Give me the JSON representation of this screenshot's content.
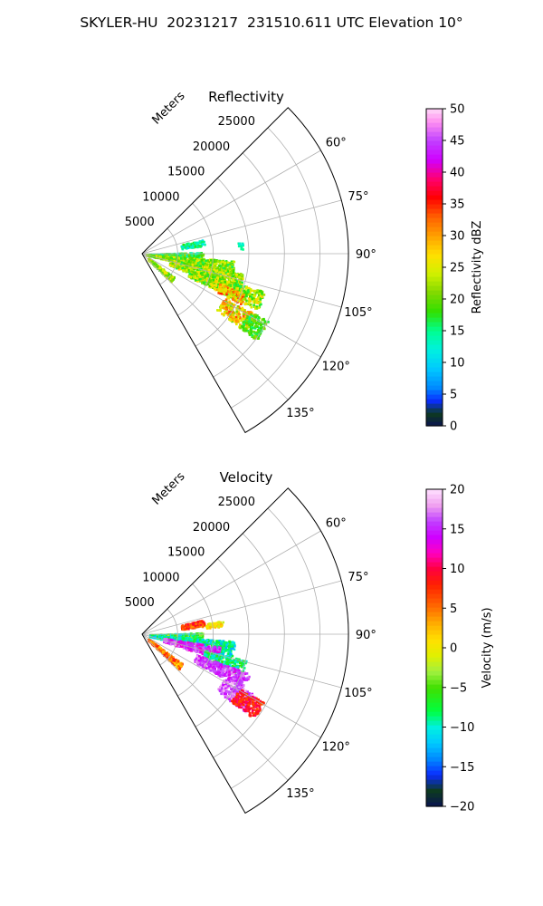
{
  "figure": {
    "suptitle": "SKYLER-HU  20231217  231510.611 UTC Elevation 10°"
  },
  "colors": {
    "grid": "#b0b0b0",
    "axis": "#000000",
    "background": "#ffffff"
  },
  "chart_data": [
    {
      "type": "polar-scatter",
      "title": "Reflectivity",
      "radial_axis_label": "Meters",
      "r_range": [
        0,
        29000
      ],
      "r_ticks": [
        5000,
        10000,
        15000,
        20000,
        25000
      ],
      "r_tick_labels": [
        "5000",
        "10000",
        "15000",
        "20000",
        "25000"
      ],
      "theta_range_deg": [
        45,
        150
      ],
      "theta_ticks_deg": [
        60,
        75,
        90,
        105,
        120,
        135
      ],
      "theta_tick_labels": [
        "60°",
        "75°",
        "90°",
        "105°",
        "120°",
        "135°"
      ],
      "grid": true,
      "colorbar": {
        "label": "Reflectivity dBZ",
        "range": [
          0,
          50
        ],
        "ticks": [
          0,
          5,
          10,
          15,
          20,
          25,
          30,
          35,
          40,
          45,
          50
        ],
        "tick_labels": [
          "0",
          "5",
          "10",
          "15",
          "20",
          "25",
          "30",
          "35",
          "40",
          "45",
          "50"
        ],
        "stops": [
          [
            0,
            "#0a1450"
          ],
          [
            2,
            "#0d3a20"
          ],
          [
            4,
            "#0a2cff"
          ],
          [
            6,
            "#0088ff"
          ],
          [
            9,
            "#00c8ff"
          ],
          [
            12,
            "#00f0e0"
          ],
          [
            15,
            "#00ff90"
          ],
          [
            18,
            "#30e000"
          ],
          [
            21,
            "#80d800"
          ],
          [
            24,
            "#d0f000"
          ],
          [
            27,
            "#ffe000"
          ],
          [
            30,
            "#ffa000"
          ],
          [
            33,
            "#ff6000"
          ],
          [
            36,
            "#ff0000"
          ],
          [
            39,
            "#ff0070"
          ],
          [
            42,
            "#d000ff"
          ],
          [
            45,
            "#c040ff"
          ],
          [
            48,
            "#ff90f0"
          ],
          [
            50,
            "#ffd8f8"
          ]
        ]
      },
      "regions": [
        {
          "th": [
            76,
            82
          ],
          "r": [
            5500,
            8800
          ],
          "v": [
            10,
            18
          ]
        },
        {
          "th": [
            83,
            87
          ],
          "r": [
            13500,
            14200
          ],
          "v": [
            12,
            16
          ]
        },
        {
          "th": [
            88,
            94
          ],
          "r": [
            1000,
            8500
          ],
          "v": [
            12,
            22
          ]
        },
        {
          "th": [
            94,
            103
          ],
          "r": [
            500,
            13000
          ],
          "v": [
            16,
            26
          ]
        },
        {
          "th": [
            101,
            112
          ],
          "r": [
            4000,
            14500
          ],
          "v": [
            16,
            28
          ]
        },
        {
          "th": [
            107,
            116
          ],
          "r": [
            7000,
            18000
          ],
          "v": [
            16,
            28
          ]
        },
        {
          "th": [
            111,
            117
          ],
          "r": [
            11500,
            15500
          ],
          "v": [
            22,
            36
          ]
        },
        {
          "th": [
            118,
            127
          ],
          "r": [
            13000,
            18000
          ],
          "v": [
            20,
            34
          ]
        },
        {
          "th": [
            118,
            127
          ],
          "r": [
            17000,
            20000
          ],
          "v": [
            15,
            22
          ]
        },
        {
          "th": [
            126,
            134
          ],
          "r": [
            1000,
            5500
          ],
          "v": [
            18,
            27
          ]
        }
      ]
    },
    {
      "type": "polar-scatter",
      "title": "Velocity",
      "radial_axis_label": "Meters",
      "r_range": [
        0,
        29000
      ],
      "r_ticks": [
        5000,
        10000,
        15000,
        20000,
        25000
      ],
      "r_tick_labels": [
        "5000",
        "10000",
        "15000",
        "20000",
        "25000"
      ],
      "theta_range_deg": [
        45,
        150
      ],
      "theta_ticks_deg": [
        60,
        75,
        90,
        105,
        120,
        135
      ],
      "theta_tick_labels": [
        "60°",
        "75°",
        "90°",
        "105°",
        "120°",
        "135°"
      ],
      "grid": true,
      "colorbar": {
        "label": "Velocity (m/s)",
        "range": [
          -20,
          20
        ],
        "ticks": [
          -20,
          -15,
          -10,
          -5,
          0,
          5,
          10,
          15,
          20
        ],
        "tick_labels": [
          "−20",
          "−15",
          "−10",
          "−5",
          "0",
          "5",
          "10",
          "15",
          "20"
        ],
        "stops": [
          [
            -20,
            "#0a1450"
          ],
          [
            -18,
            "#0d3a20"
          ],
          [
            -16,
            "#0a2cff"
          ],
          [
            -14,
            "#0088ff"
          ],
          [
            -12,
            "#00c8ff"
          ],
          [
            -10,
            "#00f0e0"
          ],
          [
            -8,
            "#00ff40"
          ],
          [
            -5,
            "#40e000"
          ],
          [
            -3,
            "#a0f040"
          ],
          [
            -1,
            "#e0f000"
          ],
          [
            1,
            "#ffe000"
          ],
          [
            3,
            "#ffb000"
          ],
          [
            5,
            "#ff7000"
          ],
          [
            8,
            "#ff2000"
          ],
          [
            10,
            "#ff0040"
          ],
          [
            12,
            "#ff00c0"
          ],
          [
            14,
            "#d000ff"
          ],
          [
            16,
            "#c040ff"
          ],
          [
            18,
            "#f0a0f0"
          ],
          [
            20,
            "#ffe0ff"
          ]
        ]
      },
      "regions": [
        {
          "th": [
            76,
            82
          ],
          "r": [
            5500,
            8800
          ],
          "v": [
            4,
            10
          ]
        },
        {
          "th": [
            80,
            84
          ],
          "r": [
            9000,
            11500
          ],
          "v": [
            -2,
            3
          ]
        },
        {
          "th": [
            88,
            94
          ],
          "r": [
            1000,
            8500
          ],
          "v": [
            -12,
            -2
          ]
        },
        {
          "th": [
            94,
            103
          ],
          "r": [
            1000,
            13000
          ],
          "v": [
            -13,
            -6
          ]
        },
        {
          "th": [
            99,
            108
          ],
          "r": [
            3000,
            11000
          ],
          "v": [
            12,
            18
          ]
        },
        {
          "th": [
            104,
            112
          ],
          "r": [
            9000,
            15000
          ],
          "v": [
            -12,
            -5
          ]
        },
        {
          "th": [
            110,
            118
          ],
          "r": [
            8000,
            16000
          ],
          "v": [
            13,
            18
          ]
        },
        {
          "th": [
            118,
            127
          ],
          "r": [
            13000,
            18000
          ],
          "v": [
            14,
            19
          ]
        },
        {
          "th": [
            119,
            127
          ],
          "r": [
            15500,
            19500
          ],
          "v": [
            6,
            11
          ]
        },
        {
          "th": [
            126,
            134
          ],
          "r": [
            1000,
            7000
          ],
          "v": [
            1,
            9
          ]
        }
      ]
    }
  ]
}
